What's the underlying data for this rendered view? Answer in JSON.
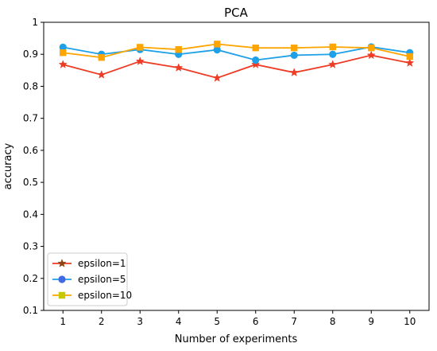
{
  "chart_data": {
    "type": "line",
    "title": "PCA",
    "xlabel": "Number of experiments",
    "ylabel": "accuracy",
    "x": [
      1,
      2,
      3,
      4,
      5,
      6,
      7,
      8,
      9,
      10
    ],
    "xticks": [
      "1",
      "2",
      "3",
      "4",
      "5",
      "6",
      "7",
      "8",
      "9",
      "10"
    ],
    "yticks": [
      "0.1",
      "0.2",
      "0.3",
      "0.4",
      "0.5",
      "0.6",
      "0.7",
      "0.8",
      "0.9",
      "1"
    ],
    "ylim": [
      0.1,
      1.0
    ],
    "xlim": [
      0.5,
      10.5
    ],
    "grid": false,
    "legend_position": "lower-left",
    "series": [
      {
        "name": "epsilon=1",
        "color": "#ee3b24",
        "legend_marker_color": "#8b4513",
        "marker": "star",
        "values": [
          0.868,
          0.836,
          0.878,
          0.858,
          0.826,
          0.868,
          0.843,
          0.868,
          0.897,
          0.873
        ]
      },
      {
        "name": "epsilon=5",
        "color": "#1ea0e8",
        "legend_marker_color": "#4169e1",
        "marker": "circle",
        "values": [
          0.922,
          0.9,
          0.915,
          0.9,
          0.914,
          0.882,
          0.897,
          0.9,
          0.923,
          0.905
        ]
      },
      {
        "name": "epsilon=10",
        "color": "#ffa500",
        "legend_marker_color": "#c8c800",
        "marker": "square",
        "values": [
          0.905,
          0.89,
          0.922,
          0.915,
          0.932,
          0.92,
          0.92,
          0.923,
          0.92,
          0.893
        ]
      }
    ]
  }
}
